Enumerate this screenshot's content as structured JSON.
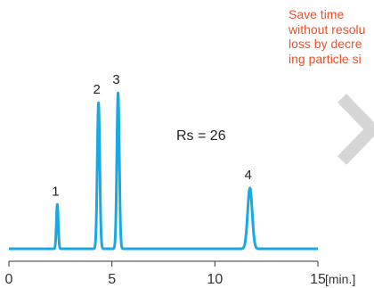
{
  "note": {
    "lines": [
      "Save time",
      "without resolu",
      "loss by decre",
      "ing particle si"
    ],
    "color": "#e8502a"
  },
  "resolution_label": "Rs = 26",
  "chart_data": {
    "type": "line",
    "title": "",
    "xlabel": "",
    "ylabel": "",
    "x_unit_label": "[min.]",
    "xlim": [
      0,
      15
    ],
    "ylim": [
      0,
      100
    ],
    "x_ticks": [
      0,
      5,
      10,
      15
    ],
    "grid": false,
    "line_color": "#1aa8e0",
    "peaks": [
      {
        "label": "1",
        "x": 2.35,
        "height": 27,
        "width": 0.045
      },
      {
        "label": "2",
        "x": 4.35,
        "height": 89,
        "width": 0.06
      },
      {
        "label": "3",
        "x": 5.3,
        "height": 95,
        "width": 0.06
      },
      {
        "label": "4",
        "x": 11.7,
        "height": 37,
        "width": 0.11
      }
    ],
    "baseline": 0
  },
  "icons": {
    "next": "chevron-right-icon"
  }
}
